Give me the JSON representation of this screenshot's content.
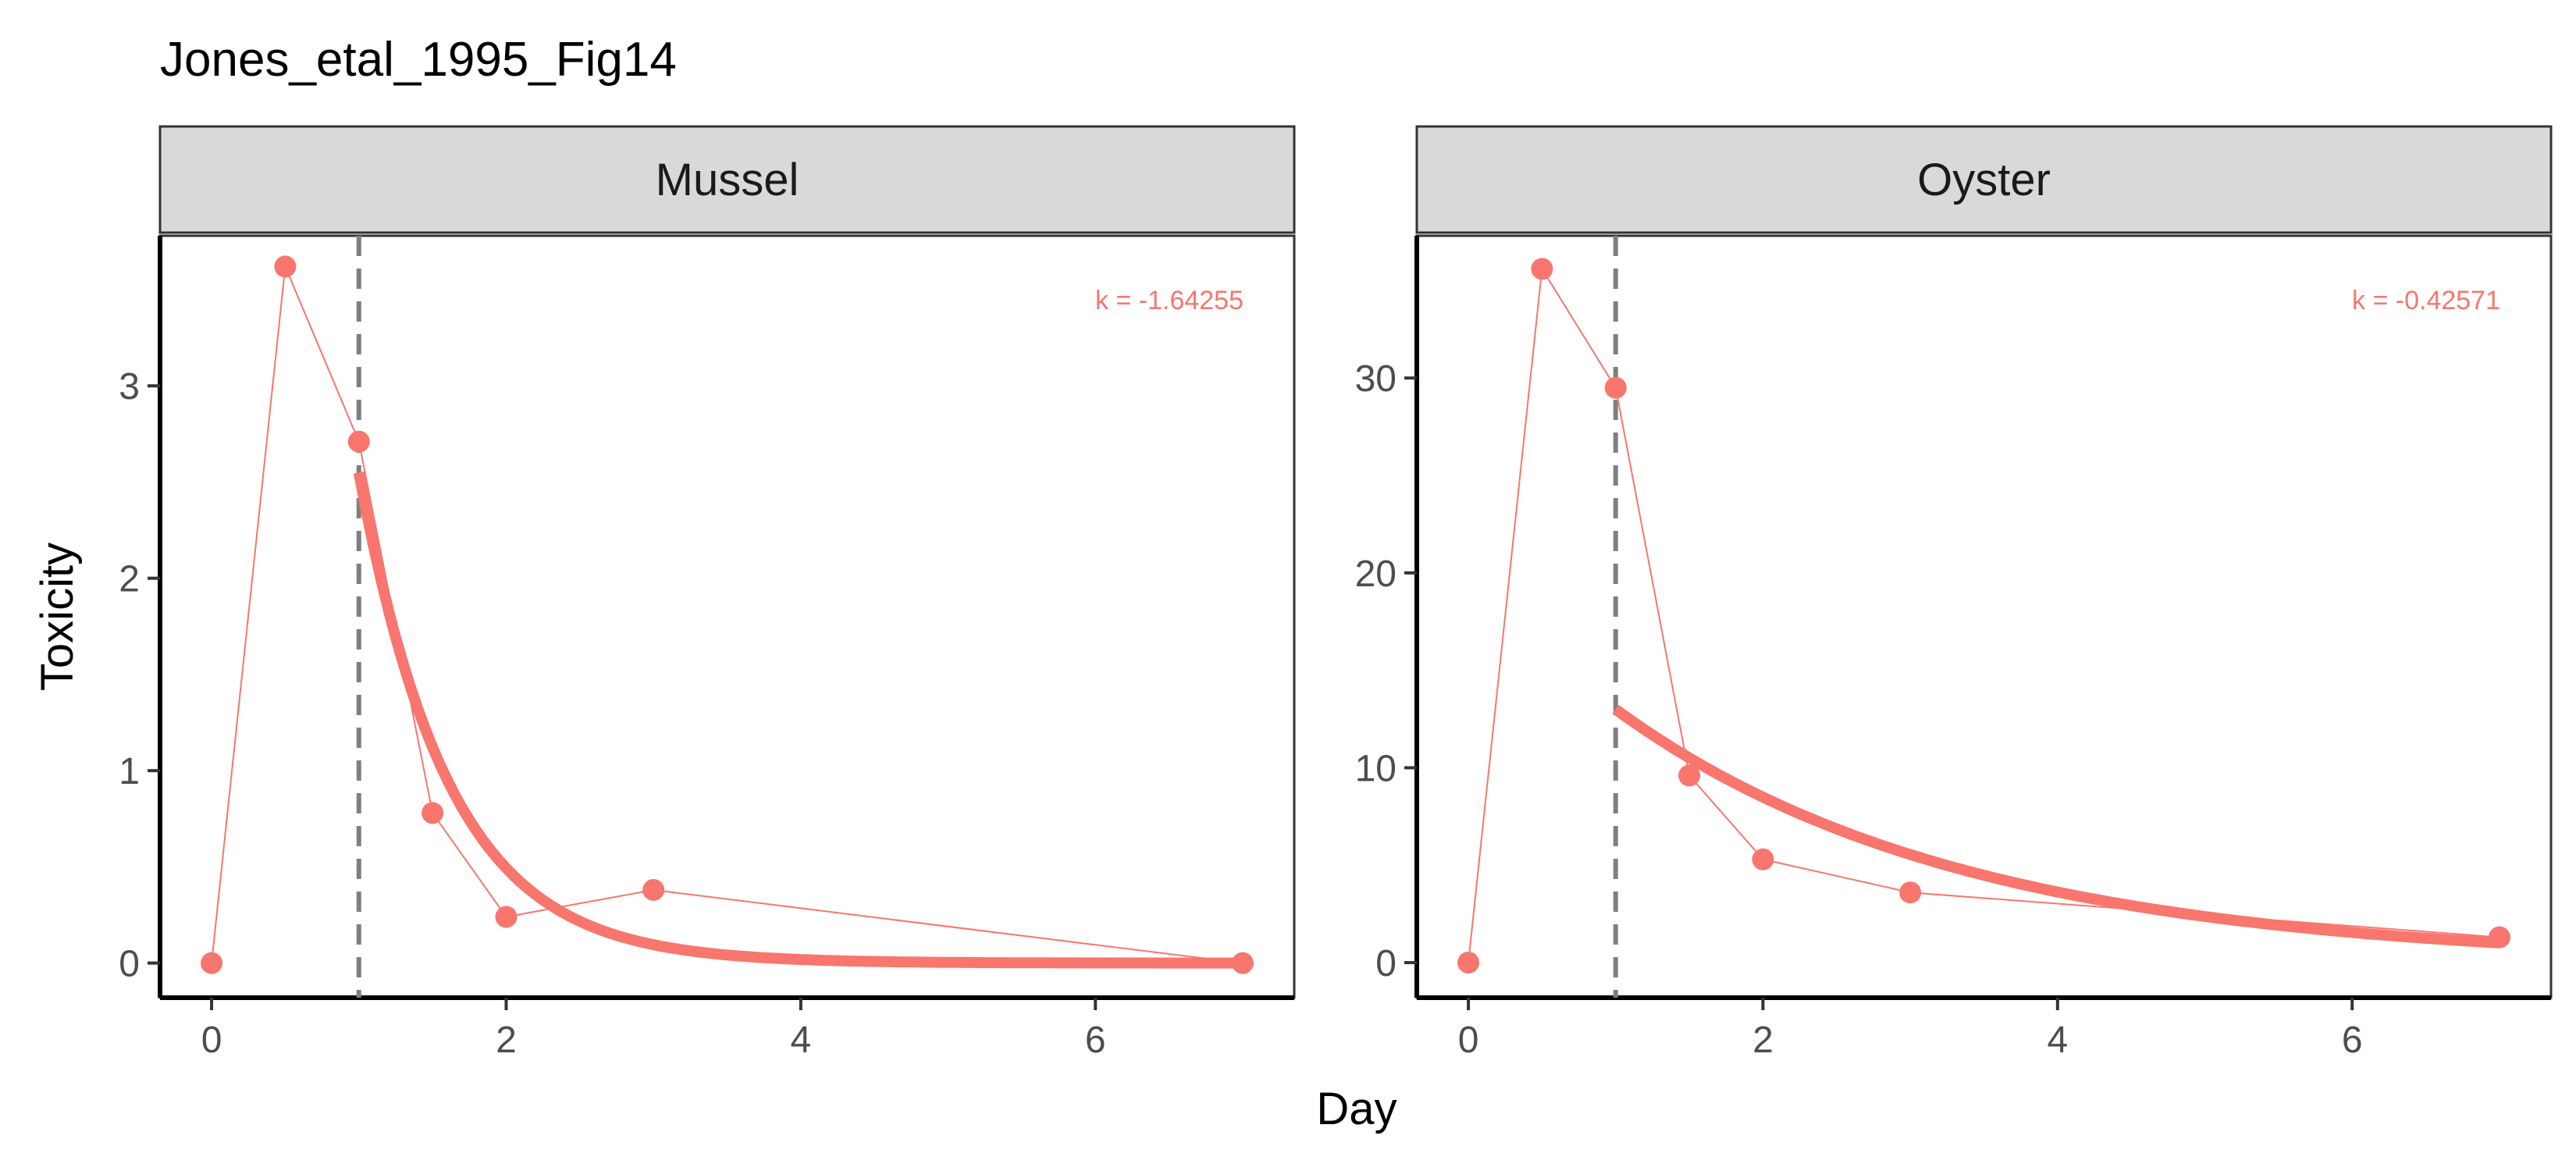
{
  "chart_data": {
    "type": "line",
    "title": "Jones_etal_1995_Fig14",
    "xlabel": "Day",
    "ylabel": "Toxicity",
    "grid": false,
    "legend": "none",
    "colors": {
      "series": "#F8766D",
      "vline": "#7f7f7f",
      "strip": "#d9d9d9"
    },
    "x_ticks": [
      0,
      2,
      4,
      6
    ],
    "xlim": [
      -0.35,
      7.35
    ],
    "panels": [
      {
        "label": "Mussel",
        "annotation": "k = -1.64255",
        "k": -1.64255,
        "fit_start": 1,
        "fit_intercept": 2.55,
        "vline_x": 1,
        "ylim": [
          -0.18,
          3.78
        ],
        "y_ticks": [
          0,
          1,
          2,
          3
        ],
        "points": {
          "x": [
            0,
            0.5,
            1,
            1.5,
            2,
            3,
            7
          ],
          "y": [
            0,
            3.62,
            2.71,
            0.78,
            0.24,
            0.38,
            0
          ]
        }
      },
      {
        "label": "Oyster",
        "annotation": "k = -0.42571",
        "k": -0.42571,
        "fit_start": 1,
        "fit_intercept": 13.0,
        "vline_x": 1,
        "ylim": [
          -1.8,
          37.3
        ],
        "y_ticks": [
          0,
          10,
          20,
          30
        ],
        "points": {
          "x": [
            0,
            0.5,
            1,
            1.5,
            2,
            3,
            7
          ],
          "y": [
            0,
            35.6,
            29.5,
            9.6,
            5.3,
            3.6,
            1.3
          ]
        }
      }
    ]
  }
}
